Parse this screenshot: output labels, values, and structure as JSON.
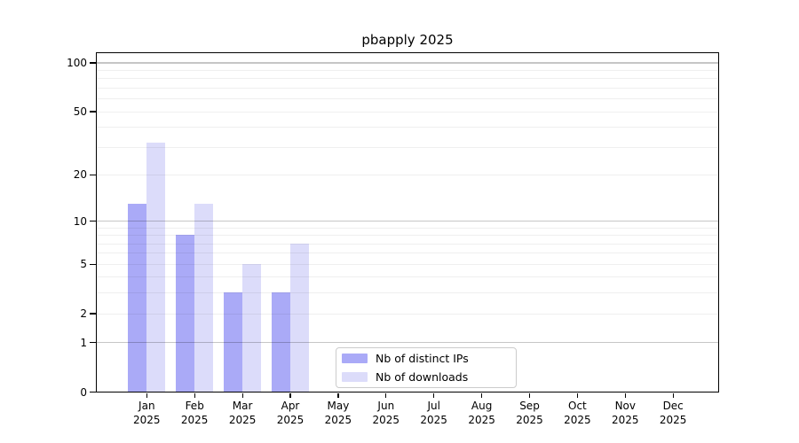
{
  "figure": {
    "background": "#ffffff",
    "text_color": "#000000"
  },
  "chart_data": {
    "type": "bar",
    "title": "pbapply 2025",
    "categories": [
      "Jan 2025",
      "Feb 2025",
      "Mar 2025",
      "Apr 2025",
      "May 2025",
      "Jun 2025",
      "Jul 2025",
      "Aug 2025",
      "Sep 2025",
      "Oct 2025",
      "Nov 2025",
      "Dec 2025"
    ],
    "series": [
      {
        "name": "Nb of distinct IPs",
        "color": "#aaaaf7",
        "values": [
          13,
          8,
          3,
          3,
          0,
          0,
          0,
          0,
          0,
          0,
          0,
          0
        ]
      },
      {
        "name": "Nb of downloads",
        "color": "#dcdcfa",
        "values": [
          32,
          13,
          5,
          7,
          0,
          0,
          0,
          0,
          0,
          0,
          0,
          0
        ]
      }
    ],
    "xlabel": "",
    "ylabel": "",
    "y_axis": {
      "scale": "log1p",
      "tick_values": [
        0,
        1,
        2,
        5,
        10,
        20,
        50,
        100
      ],
      "ylim": [
        0,
        117
      ]
    },
    "grid": {
      "on": true,
      "major_values": [
        1,
        10,
        100
      ],
      "minor_values": [
        2,
        3,
        4,
        5,
        6,
        7,
        8,
        9,
        20,
        30,
        40,
        50,
        60,
        70,
        80,
        90
      ],
      "major_color": "#c6c6c6",
      "minor_color": "#efefef"
    },
    "legend": {
      "position": "lower-center-inside",
      "border_color": "#cccccc",
      "background": "#ffffff"
    }
  }
}
